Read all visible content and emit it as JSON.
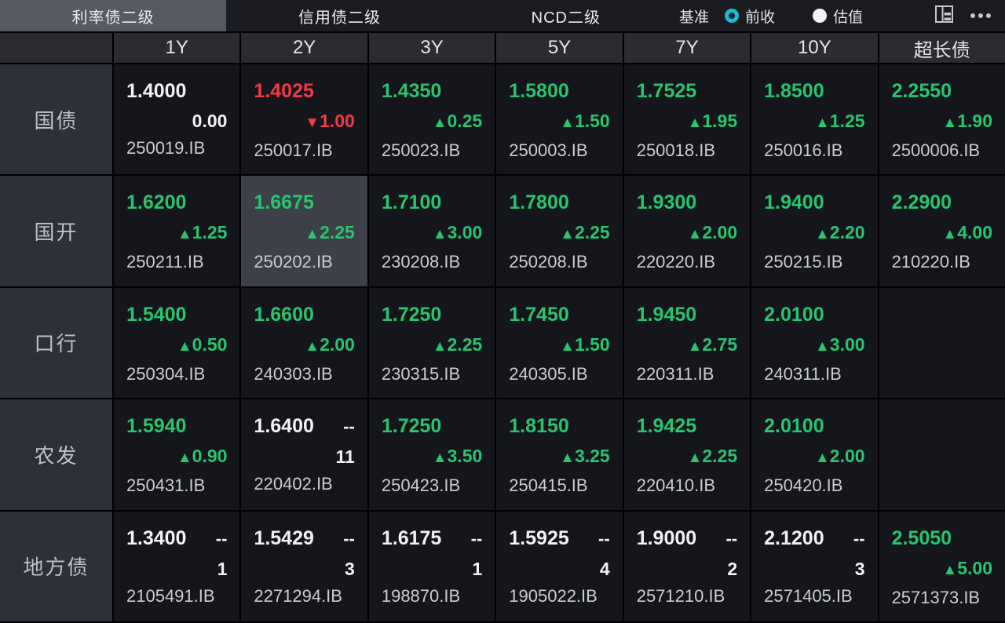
{
  "topbar": {
    "tabs": [
      {
        "label": "利率债二级",
        "active": true
      },
      {
        "label": "信用债二级",
        "active": false
      },
      {
        "label": "NCD二级",
        "active": false
      }
    ],
    "benchmark_label": "基准",
    "radios": [
      {
        "label": "前收",
        "selected": true
      },
      {
        "label": "估值",
        "selected": false
      }
    ],
    "icons": [
      "layout-icon",
      "more-icon"
    ]
  },
  "colors": {
    "up": "#28c46e",
    "down": "#f43a44",
    "neutral": "#f1f2f4",
    "accent": "#18bcd8",
    "highlight_cell": "#3d4048"
  },
  "icons": {
    "up": "▲",
    "down": "▼"
  },
  "table": {
    "columns": [
      "1Y",
      "2Y",
      "3Y",
      "5Y",
      "7Y",
      "10Y",
      "超长债"
    ],
    "rows": [
      {
        "label": "国债",
        "cells": [
          {
            "value": "1.4000",
            "dir": "flat",
            "change": "0.00",
            "code": "250019.IB"
          },
          {
            "value": "1.4025",
            "dir": "down",
            "change": "1.00",
            "code": "250017.IB"
          },
          {
            "value": "1.4350",
            "dir": "up",
            "change": "0.25",
            "code": "250023.IB"
          },
          {
            "value": "1.5800",
            "dir": "up",
            "change": "1.50",
            "code": "250003.IB"
          },
          {
            "value": "1.7525",
            "dir": "up",
            "change": "1.95",
            "code": "250018.IB"
          },
          {
            "value": "1.8500",
            "dir": "up",
            "change": "1.25",
            "code": "250016.IB"
          },
          {
            "value": "2.2550",
            "dir": "up",
            "change": "1.90",
            "code": "2500006.IB"
          }
        ]
      },
      {
        "label": "国开",
        "cells": [
          {
            "value": "1.6200",
            "dir": "up",
            "change": "1.25",
            "code": "250211.IB"
          },
          {
            "value": "1.6675",
            "dir": "up",
            "change": "2.25",
            "code": "250202.IB",
            "highlight": true
          },
          {
            "value": "1.7100",
            "dir": "up",
            "change": "3.00",
            "code": "230208.IB"
          },
          {
            "value": "1.7800",
            "dir": "up",
            "change": "2.25",
            "code": "250208.IB"
          },
          {
            "value": "1.9300",
            "dir": "up",
            "change": "2.00",
            "code": "220220.IB"
          },
          {
            "value": "1.9400",
            "dir": "up",
            "change": "2.20",
            "code": "250215.IB"
          },
          {
            "value": "2.2900",
            "dir": "up",
            "change": "4.00",
            "code": "210220.IB"
          }
        ]
      },
      {
        "label": "口行",
        "cells": [
          {
            "value": "1.5400",
            "dir": "up",
            "change": "0.50",
            "code": "250304.IB"
          },
          {
            "value": "1.6600",
            "dir": "up",
            "change": "2.00",
            "code": "240303.IB"
          },
          {
            "value": "1.7250",
            "dir": "up",
            "change": "2.25",
            "code": "230315.IB"
          },
          {
            "value": "1.7450",
            "dir": "up",
            "change": "1.50",
            "code": "240305.IB"
          },
          {
            "value": "1.9450",
            "dir": "up",
            "change": "2.75",
            "code": "220311.IB"
          },
          {
            "value": "2.0100",
            "dir": "up",
            "change": "3.00",
            "code": "240311.IB"
          },
          null
        ]
      },
      {
        "label": "农发",
        "cells": [
          {
            "value": "1.5940",
            "dir": "up",
            "change": "0.90",
            "code": "250431.IB"
          },
          {
            "value": "1.6400",
            "dir": "count",
            "dash": "--",
            "change": "11",
            "code": "220402.IB"
          },
          {
            "value": "1.7250",
            "dir": "up",
            "change": "3.50",
            "code": "250423.IB"
          },
          {
            "value": "1.8150",
            "dir": "up",
            "change": "3.25",
            "code": "250415.IB"
          },
          {
            "value": "1.9425",
            "dir": "up",
            "change": "2.25",
            "code": "220410.IB"
          },
          {
            "value": "2.0100",
            "dir": "up",
            "change": "2.00",
            "code": "250420.IB"
          },
          null
        ]
      },
      {
        "label": "地方债",
        "cells": [
          {
            "value": "1.3400",
            "dir": "count",
            "dash": "--",
            "change": "1",
            "code": "2105491.IB"
          },
          {
            "value": "1.5429",
            "dir": "count",
            "dash": "--",
            "change": "3",
            "code": "2271294.IB"
          },
          {
            "value": "1.6175",
            "dir": "count",
            "dash": "--",
            "change": "1",
            "code": "198870.IB"
          },
          {
            "value": "1.5925",
            "dir": "count",
            "dash": "--",
            "change": "4",
            "code": "1905022.IB"
          },
          {
            "value": "1.9000",
            "dir": "count",
            "dash": "--",
            "change": "2",
            "code": "2571210.IB"
          },
          {
            "value": "2.1200",
            "dir": "count",
            "dash": "--",
            "change": "3",
            "code": "2571405.IB"
          },
          {
            "value": "2.5050",
            "dir": "up",
            "change": "5.00",
            "code": "2571373.IB"
          }
        ]
      }
    ]
  }
}
